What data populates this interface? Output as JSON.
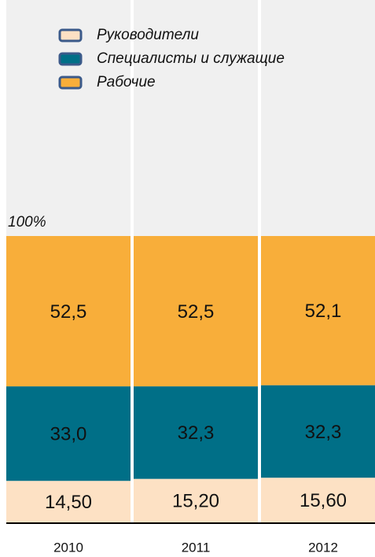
{
  "chart_data": {
    "type": "stacked_bar",
    "categories": [
      "2010",
      "2011",
      "2012"
    ],
    "series": [
      {
        "name": "Руководители",
        "color": "#fde1c4",
        "values": [
          14.5,
          15.2,
          15.6
        ],
        "value_labels": [
          "14,50",
          "15,20",
          "15,60"
        ]
      },
      {
        "name": "Специалисты и служащие",
        "color": "#006f87",
        "values": [
          33.0,
          32.3,
          32.3
        ],
        "value_labels": [
          "33,0",
          "32,3",
          "32,3"
        ]
      },
      {
        "name": "Рабочие",
        "color": "#f8ae3a",
        "values": [
          52.5,
          52.5,
          52.1
        ],
        "value_labels": [
          "52,5",
          "52,5",
          "52,1"
        ]
      }
    ],
    "ylim": [
      0,
      100
    ],
    "yticks": [
      {
        "value": 100,
        "label": "100%"
      }
    ]
  }
}
